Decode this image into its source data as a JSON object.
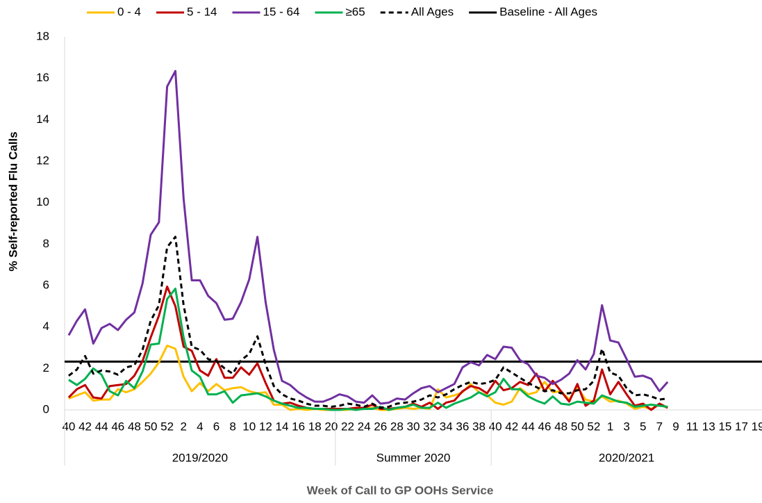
{
  "chart_data": {
    "type": "line",
    "y_label": "% Self-reported Flu Calls",
    "x_label": "Week of Call to GP OOHs Service",
    "ylim": [
      0,
      18
    ],
    "yticks": [
      0,
      2,
      4,
      6,
      8,
      10,
      12,
      14,
      16,
      18
    ],
    "categories": [
      "40",
      null,
      "42",
      null,
      "44",
      null,
      "46",
      null,
      "48",
      null,
      "50",
      null,
      "52",
      null,
      "2",
      null,
      "4",
      null,
      "6",
      null,
      "8",
      null,
      "10",
      null,
      "12",
      null,
      "14",
      null,
      "16",
      null,
      "18",
      null,
      "20",
      null,
      "22",
      null,
      "24",
      null,
      "26",
      null,
      "28",
      null,
      "30",
      null,
      "32",
      null,
      "34",
      null,
      "36",
      null,
      "38",
      null,
      "40",
      null,
      "42",
      null,
      "44",
      null,
      "46",
      null,
      "48",
      null,
      "50",
      null,
      "52",
      null,
      "1",
      null,
      "3",
      null,
      "5",
      null,
      "7",
      null,
      "9",
      null,
      "11",
      null,
      "13",
      null,
      "15",
      null,
      "17",
      null,
      "19"
    ],
    "groups": [
      {
        "label": "2019/2020",
        "count": 33
      },
      {
        "label": "Summer 2020",
        "count": 19
      },
      {
        "label": "2020/2021",
        "count": 33
      }
    ],
    "series": [
      {
        "name": "0 - 4",
        "color": "#ffc000",
        "dash": false,
        "values": [
          0.55,
          0.7,
          0.85,
          0.45,
          0.5,
          0.5,
          1.0,
          0.85,
          1.0,
          1.35,
          1.75,
          2.3,
          3.1,
          2.95,
          1.6,
          0.9,
          1.3,
          0.9,
          1.25,
          0.95,
          1.05,
          1.1,
          0.9,
          0.8,
          0.85,
          0.25,
          0.25,
          0.0,
          0.05,
          0.0,
          0.05,
          0.0,
          0.0,
          0.0,
          0.0,
          0.1,
          0.05,
          0.1,
          0.0,
          0.0,
          0.05,
          0.1,
          0.05,
          0.1,
          0.05,
          1.0,
          0.6,
          0.7,
          0.85,
          1.25,
          0.85,
          0.7,
          0.35,
          0.25,
          0.4,
          1.05,
          0.75,
          0.85,
          1.35,
          0.85,
          0.9,
          0.5,
          1.1,
          0.5,
          0.4,
          0.65,
          0.4,
          0.45,
          0.3,
          0.05,
          0.15,
          0.05,
          0.25,
          0.1,
          null,
          null,
          null,
          null,
          null,
          null,
          null,
          null,
          null,
          null,
          null
        ]
      },
      {
        "name": "5 - 14",
        "color": "#c00000",
        "dash": false,
        "values": [
          0.6,
          1.0,
          1.2,
          0.6,
          0.55,
          1.15,
          1.2,
          1.25,
          1.65,
          2.35,
          3.5,
          4.55,
          5.95,
          5.0,
          3.05,
          2.85,
          1.9,
          1.65,
          2.45,
          1.55,
          1.55,
          2.05,
          1.7,
          2.25,
          1.3,
          0.45,
          0.3,
          0.35,
          0.2,
          0.1,
          0.05,
          0.05,
          0.05,
          0.05,
          0.05,
          0.1,
          0.1,
          0.25,
          0.05,
          0.05,
          0.1,
          0.15,
          0.3,
          0.15,
          0.35,
          0.05,
          0.35,
          0.45,
          0.9,
          1.15,
          1.05,
          0.8,
          1.4,
          0.95,
          1.05,
          1.35,
          1.2,
          1.75,
          0.9,
          1.4,
          0.9,
          0.4,
          1.25,
          0.2,
          0.45,
          1.95,
          0.75,
          1.35,
          0.75,
          0.2,
          0.3,
          0.0,
          0.3,
          0.1,
          null,
          null,
          null,
          null,
          null,
          null,
          null,
          null,
          null,
          null,
          null
        ]
      },
      {
        "name": "15 - 64",
        "color": "#7030a0",
        "dash": false,
        "values": [
          3.6,
          4.3,
          4.85,
          3.2,
          3.95,
          4.15,
          3.85,
          4.35,
          4.7,
          6.1,
          8.45,
          9.05,
          15.6,
          16.35,
          10.2,
          6.25,
          6.25,
          5.5,
          5.15,
          4.35,
          4.4,
          5.2,
          6.3,
          8.35,
          5.2,
          2.9,
          1.4,
          1.2,
          0.85,
          0.6,
          0.4,
          0.4,
          0.55,
          0.75,
          0.65,
          0.4,
          0.35,
          0.7,
          0.3,
          0.35,
          0.55,
          0.5,
          0.8,
          1.05,
          1.15,
          0.85,
          1.05,
          1.25,
          2.05,
          2.3,
          2.15,
          2.65,
          2.45,
          3.05,
          3.0,
          2.4,
          2.2,
          1.65,
          1.55,
          1.25,
          1.45,
          1.75,
          2.4,
          1.95,
          2.7,
          5.05,
          3.35,
          3.25,
          2.45,
          1.6,
          1.65,
          1.5,
          0.9,
          1.35,
          null,
          null,
          null,
          null,
          null,
          null,
          null,
          null,
          null,
          null,
          null
        ]
      },
      {
        "name": "≥65",
        "color": "#00b050",
        "dash": false,
        "values": [
          1.45,
          1.2,
          1.5,
          2.0,
          1.7,
          0.9,
          0.7,
          1.4,
          1.05,
          1.85,
          3.15,
          3.2,
          5.35,
          5.85,
          3.5,
          1.9,
          1.6,
          0.75,
          0.75,
          0.9,
          0.35,
          0.7,
          0.75,
          0.8,
          0.65,
          0.45,
          0.3,
          0.2,
          0.1,
          0.1,
          0.05,
          0.05,
          0.0,
          0.0,
          0.05,
          0.0,
          0.05,
          0.05,
          0.15,
          0.0,
          0.1,
          0.15,
          0.25,
          0.1,
          0.1,
          0.35,
          0.1,
          0.3,
          0.45,
          0.6,
          0.85,
          0.65,
          0.85,
          1.5,
          1.0,
          1.0,
          0.65,
          0.45,
          0.3,
          0.65,
          0.3,
          0.25,
          0.4,
          0.35,
          0.3,
          0.7,
          0.55,
          0.4,
          0.35,
          0.15,
          0.2,
          0.25,
          0.2,
          0.15,
          null,
          null,
          null,
          null,
          null,
          null,
          null,
          null,
          null,
          null,
          null
        ]
      },
      {
        "name": "All Ages",
        "color": "#000000",
        "dash": true,
        "values": [
          1.65,
          1.95,
          2.6,
          1.75,
          1.9,
          1.85,
          1.7,
          2.05,
          2.15,
          2.9,
          4.3,
          5.05,
          7.85,
          8.35,
          5.05,
          3.05,
          2.9,
          2.45,
          2.35,
          2.0,
          1.75,
          2.4,
          2.7,
          3.55,
          2.2,
          1.15,
          0.75,
          0.55,
          0.45,
          0.3,
          0.2,
          0.2,
          0.15,
          0.2,
          0.3,
          0.25,
          0.15,
          0.3,
          0.1,
          0.15,
          0.3,
          0.35,
          0.4,
          0.5,
          0.7,
          0.6,
          0.75,
          1.0,
          1.2,
          1.35,
          1.25,
          1.3,
          1.45,
          2.05,
          1.8,
          1.55,
          1.3,
          1.1,
          0.9,
          0.95,
          0.8,
          0.8,
          0.95,
          1.0,
          1.4,
          2.95,
          1.8,
          1.65,
          1.05,
          0.7,
          0.75,
          0.65,
          0.5,
          0.55,
          null,
          null,
          null,
          null,
          null,
          null,
          null,
          null,
          null,
          null,
          null
        ]
      }
    ],
    "baseline": {
      "name": "Baseline - All Ages",
      "color": "#000000",
      "value": 2.33
    }
  }
}
